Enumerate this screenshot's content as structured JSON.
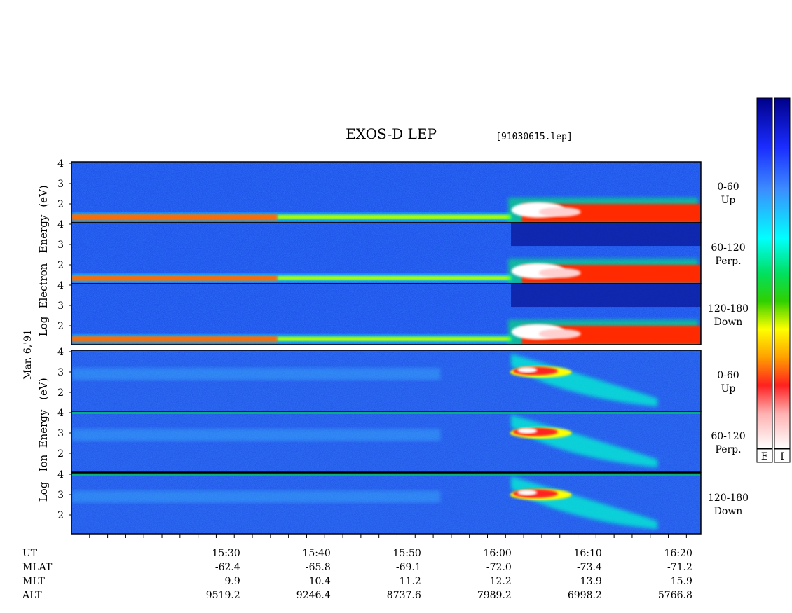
{
  "chart_data": {
    "type": "heatmap",
    "title": "EXOS-D LEP",
    "file_label": "[91030615.lep]",
    "date_label": "Mar. 6,'91",
    "electron_ylabel": [
      "Log",
      "Electron",
      "Energy",
      "(eV)"
    ],
    "ion_ylabel": [
      "Log",
      "Ion",
      "Energy",
      "(eV)"
    ],
    "y_ticks": [
      "4",
      "3",
      "2"
    ],
    "ylim": [
      1,
      4
    ],
    "x_range_minutes": [
      15.22,
      16.38
    ],
    "panels": [
      {
        "species": "Electron",
        "angle": "0-60",
        "direction": "Up"
      },
      {
        "species": "Electron",
        "angle": "60-120",
        "direction": "Perp."
      },
      {
        "species": "Electron",
        "angle": "120-180",
        "direction": "Down"
      },
      {
        "species": "Ion",
        "angle": "0-60",
        "direction": "Up"
      },
      {
        "species": "Ion",
        "angle": "60-120",
        "direction": "Perp."
      },
      {
        "species": "Ion",
        "angle": "120-180",
        "direction": "Down"
      }
    ],
    "footer": {
      "row_labels": [
        "UT",
        "MLAT",
        "MLT",
        "ALT"
      ],
      "columns": [
        {
          "ut": "15:30",
          "mlat": "-62.4",
          "mlt": "9.9",
          "alt": "9519.2"
        },
        {
          "ut": "15:40",
          "mlat": "-65.8",
          "mlt": "10.4",
          "alt": "9246.4"
        },
        {
          "ut": "15:50",
          "mlat": "-69.1",
          "mlt": "11.2",
          "alt": "8737.6"
        },
        {
          "ut": "16:00",
          "mlat": "-72.0",
          "mlt": "12.2",
          "alt": "7989.2"
        },
        {
          "ut": "16:10",
          "mlat": "-73.4",
          "mlt": "13.9",
          "alt": "6998.2"
        },
        {
          "ut": "16:20",
          "mlat": "-71.2",
          "mlt": "15.9",
          "alt": "5766.8"
        }
      ]
    },
    "colorbars": [
      {
        "label": "E"
      },
      {
        "label": "I"
      }
    ],
    "colormap": [
      "#ffffff",
      "#ffb0b0",
      "#ff2020",
      "#ff8000",
      "#ffff00",
      "#00d000",
      "#00ffff",
      "#4090ff",
      "#2040ff",
      "#00008a"
    ]
  }
}
